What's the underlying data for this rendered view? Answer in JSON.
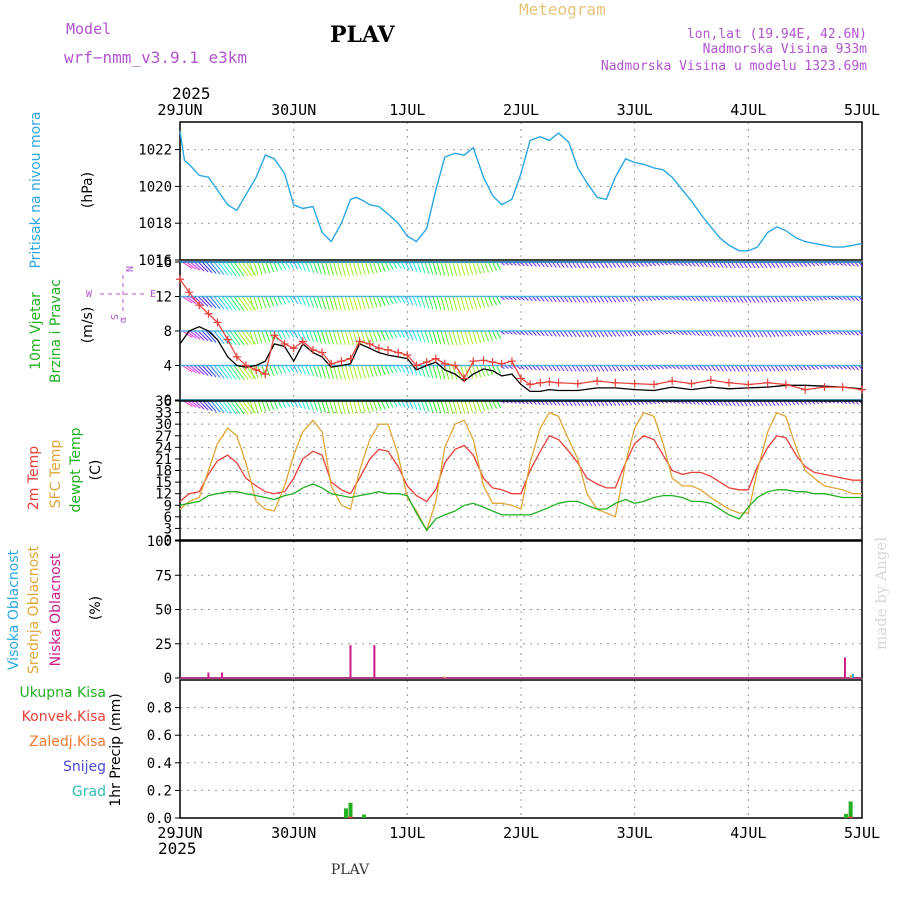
{
  "header": {
    "title": "PLAV",
    "subtitle": "Meteogram",
    "model_label": "Model",
    "model_name": "wrf−nmm_v3.9.1  e3km",
    "location": "lon,lat (19.94E, 42.6N)",
    "elevation": "Nadmorska Visina 933m",
    "model_elevation": "Nadmorska Visina u modelu 1323.69m",
    "year_top": "2025",
    "year_bottom": "2025",
    "footer_station": "PLAV",
    "credit": "made by Angel",
    "compass": [
      "N",
      "E",
      "S",
      "W"
    ],
    "compass_alpha": "α"
  },
  "colors": {
    "pressure": "#2aa7e0",
    "wind_speed": "#000000",
    "gust": "#e8403a",
    "t2m": "#e8403a",
    "sfc": "#e0a63a",
    "dew": "#22b022",
    "high_cloud": "#2aa7e0",
    "mid_cloud": "#e0a63a",
    "low_cloud": "#cc1a88",
    "total_precip": "#22b022",
    "conv_precip": "#e8403a",
    "frozen_precip": "#f07a30",
    "snow": "#4b4bd6",
    "graupel": "#2ebfb0"
  },
  "chart_data": [
    {
      "type": "line",
      "panel": "pressure",
      "xlabel_ticks": [
        "29JUN",
        "30JUN",
        "1JUL",
        "2JUL",
        "3JUL",
        "4JUL",
        "5JUL"
      ],
      "ylabel": "(hPa)",
      "side_labels": [
        "Pritisak na nivou mora"
      ],
      "ylim": [
        1016,
        1023.5
      ],
      "y_ticks": [
        1016,
        1018,
        1020,
        1022
      ],
      "series": [
        {
          "name": "Pritisak na nivou mora",
          "x": [
            0,
            0.04,
            0.08,
            0.17,
            0.25,
            0.33,
            0.42,
            0.5,
            0.67,
            0.75,
            0.83,
            0.92,
            1.0,
            1.08,
            1.17,
            1.25,
            1.33,
            1.42,
            1.5,
            1.55,
            1.62,
            1.67,
            1.75,
            1.83,
            1.92,
            2.0,
            2.08,
            2.17,
            2.25,
            2.33,
            2.42,
            2.5,
            2.58,
            2.67,
            2.75,
            2.83,
            2.92,
            3.0,
            3.08,
            3.17,
            3.25,
            3.33,
            3.42,
            3.5,
            3.58,
            3.67,
            3.75,
            3.83,
            3.92,
            4.0,
            4.08,
            4.17,
            4.25,
            4.33,
            4.42,
            4.5,
            4.58,
            4.67,
            4.75,
            4.83,
            4.92,
            5.0,
            5.08,
            5.17,
            5.25,
            5.33,
            5.42,
            5.5,
            5.58,
            5.67,
            5.75,
            5.83,
            5.92,
            6.0
          ],
          "y": [
            1023.0,
            1021.4,
            1021.2,
            1020.6,
            1020.5,
            1019.8,
            1019.0,
            1018.7,
            1020.5,
            1021.7,
            1021.5,
            1020.7,
            1019.0,
            1018.8,
            1018.9,
            1017.5,
            1017.0,
            1018.0,
            1019.3,
            1019.4,
            1019.2,
            1019.0,
            1018.9,
            1018.5,
            1018.0,
            1017.3,
            1017.0,
            1017.7,
            1019.8,
            1021.6,
            1021.8,
            1021.7,
            1022.1,
            1020.5,
            1019.5,
            1019.0,
            1019.3,
            1020.7,
            1022.5,
            1022.7,
            1022.5,
            1022.9,
            1022.4,
            1021.0,
            1020.2,
            1019.4,
            1019.3,
            1020.5,
            1021.5,
            1021.3,
            1021.2,
            1021.0,
            1020.9,
            1020.5,
            1019.8,
            1019.2,
            1018.5,
            1017.8,
            1017.2,
            1016.8,
            1016.5,
            1016.5,
            1016.7,
            1017.5,
            1017.8,
            1017.6,
            1017.2,
            1017.0,
            1016.9,
            1016.8,
            1016.7,
            1016.7,
            1016.8,
            1016.9
          ]
        }
      ]
    },
    {
      "type": "line",
      "panel": "wind",
      "ylabel": "(m/s)",
      "side_labels": [
        "10m Vjetar",
        "Brzina i Pravac"
      ],
      "ylim": [
        0,
        16
      ],
      "y_ticks": [
        0,
        4,
        8,
        12,
        16
      ],
      "barb_levels_ms": [
        0,
        4,
        8,
        12,
        16
      ],
      "series": [
        {
          "name": "Brzina",
          "x": [
            0,
            0.08,
            0.17,
            0.25,
            0.33,
            0.42,
            0.5,
            0.58,
            0.67,
            0.75,
            0.83,
            0.92,
            1.0,
            1.08,
            1.17,
            1.25,
            1.33,
            1.42,
            1.5,
            1.58,
            1.67,
            1.75,
            1.83,
            1.92,
            2.0,
            2.08,
            2.17,
            2.25,
            2.33,
            2.42,
            2.5,
            2.58,
            2.67,
            2.75,
            2.83,
            2.92,
            3.0,
            3.08,
            3.17,
            3.25,
            3.33,
            3.5,
            3.67,
            3.83,
            4.0,
            4.17,
            4.33,
            4.5,
            4.67,
            4.83,
            5.0,
            5.17,
            5.33,
            5.5,
            5.67,
            5.83,
            6.0
          ],
          "y": [
            6.5,
            8.0,
            8.5,
            8.0,
            7.0,
            5.0,
            4.0,
            3.8,
            4.0,
            4.5,
            6.5,
            6.2,
            4.5,
            6.5,
            5.5,
            5.0,
            3.8,
            4.0,
            4.2,
            6.5,
            6.0,
            5.5,
            5.2,
            5.0,
            4.8,
            3.5,
            4.0,
            4.4,
            3.5,
            3.0,
            2.2,
            3.0,
            3.6,
            3.4,
            2.8,
            3.0,
            1.8,
            1.0,
            1.0,
            1.2,
            1.1,
            1.1,
            1.4,
            1.4,
            1.2,
            1.1,
            1.5,
            1.2,
            1.5,
            1.3,
            1.4,
            1.5,
            1.7,
            1.7,
            1.6,
            1.5,
            1.3
          ]
        },
        {
          "name": "Udari",
          "x": [
            0,
            0.08,
            0.17,
            0.25,
            0.33,
            0.42,
            0.5,
            0.58,
            0.67,
            0.75,
            0.83,
            0.92,
            1.0,
            1.08,
            1.17,
            1.25,
            1.33,
            1.42,
            1.5,
            1.58,
            1.67,
            1.75,
            1.83,
            1.92,
            2.0,
            2.08,
            2.17,
            2.25,
            2.33,
            2.42,
            2.5,
            2.58,
            2.67,
            2.75,
            2.83,
            2.92,
            3.0,
            3.08,
            3.17,
            3.25,
            3.33,
            3.5,
            3.67,
            3.83,
            4.0,
            4.17,
            4.33,
            4.5,
            4.67,
            4.83,
            5.0,
            5.17,
            5.33,
            5.5,
            5.67,
            5.83,
            6.0
          ],
          "y": [
            14.0,
            12.5,
            11.0,
            10.0,
            9.0,
            7.0,
            5.0,
            4.0,
            3.5,
            3.0,
            7.5,
            6.5,
            6.0,
            6.8,
            5.8,
            5.5,
            4.2,
            4.5,
            4.8,
            6.8,
            6.5,
            6.0,
            5.8,
            5.5,
            5.2,
            4.0,
            4.4,
            4.8,
            4.2,
            4.0,
            2.5,
            4.5,
            4.6,
            4.4,
            4.2,
            4.5,
            2.5,
            1.8,
            2.0,
            2.1,
            2.0,
            1.9,
            2.2,
            2.0,
            1.9,
            1.8,
            2.2,
            1.9,
            2.3,
            2.0,
            1.8,
            2.0,
            1.8,
            1.2,
            1.5,
            1.5,
            1.2
          ]
        }
      ]
    },
    {
      "type": "line",
      "panel": "temperature",
      "ylabel": "(C)",
      "side_labels": [
        "2m Temp",
        "SFC Temp",
        "dewpt Temp"
      ],
      "ylim": [
        0,
        36
      ],
      "y_ticks": [
        0,
        3,
        6,
        9,
        12,
        15,
        18,
        21,
        24,
        27,
        30,
        33,
        36
      ],
      "series": [
        {
          "name": "2m Temp",
          "x": [
            0,
            0.08,
            0.17,
            0.25,
            0.33,
            0.42,
            0.5,
            0.58,
            0.67,
            0.75,
            0.83,
            0.92,
            1.0,
            1.08,
            1.17,
            1.25,
            1.33,
            1.42,
            1.5,
            1.58,
            1.67,
            1.75,
            1.83,
            1.92,
            2.0,
            2.08,
            2.17,
            2.25,
            2.33,
            2.42,
            2.5,
            2.58,
            2.67,
            2.75,
            2.83,
            2.92,
            3.0,
            3.08,
            3.17,
            3.25,
            3.33,
            3.42,
            3.5,
            3.58,
            3.67,
            3.75,
            3.83,
            3.92,
            4.0,
            4.08,
            4.17,
            4.25,
            4.33,
            4.42,
            4.5,
            4.58,
            4.67,
            4.75,
            4.83,
            4.92,
            5.0,
            5.08,
            5.17,
            5.25,
            5.33,
            5.42,
            5.5,
            5.58,
            5.67,
            5.75,
            5.83,
            5.92,
            6.0
          ],
          "y": [
            10,
            12,
            12.5,
            17,
            20.5,
            22,
            20,
            16,
            14,
            12.5,
            12,
            12.5,
            16,
            21,
            23,
            22,
            15,
            13,
            12,
            16,
            21,
            23.5,
            23,
            19,
            14,
            11.5,
            10,
            13,
            20,
            23.5,
            24.5,
            22,
            16,
            13.5,
            13,
            12,
            12,
            18,
            23,
            27,
            26,
            23,
            20,
            16,
            14.5,
            13.5,
            13.5,
            20,
            25,
            27,
            26,
            22,
            18,
            17,
            17.5,
            17.5,
            16.5,
            15,
            13.5,
            13,
            13,
            19,
            24,
            27,
            26.5,
            22,
            19,
            17.5,
            17,
            16.5,
            16,
            15.5,
            15.5
          ]
        },
        {
          "name": "SFC Temp",
          "x": [
            0,
            0.08,
            0.17,
            0.25,
            0.33,
            0.42,
            0.5,
            0.58,
            0.67,
            0.75,
            0.83,
            0.92,
            1.0,
            1.08,
            1.17,
            1.25,
            1.33,
            1.42,
            1.5,
            1.58,
            1.67,
            1.75,
            1.83,
            1.92,
            2.0,
            2.08,
            2.17,
            2.25,
            2.33,
            2.42,
            2.5,
            2.58,
            2.67,
            2.75,
            2.83,
            2.92,
            3.0,
            3.08,
            3.17,
            3.25,
            3.33,
            3.42,
            3.5,
            3.58,
            3.67,
            3.75,
            3.83,
            3.92,
            4.0,
            4.08,
            4.17,
            4.25,
            4.33,
            4.42,
            4.5,
            4.58,
            4.67,
            4.75,
            4.83,
            4.92,
            5.0,
            5.08,
            5.17,
            5.25,
            5.33,
            5.42,
            5.5,
            5.58,
            5.67,
            5.75,
            5.83,
            5.92,
            6.0
          ],
          "y": [
            8,
            10,
            11,
            18,
            25,
            29,
            27,
            20,
            10,
            8,
            7.5,
            14,
            22,
            28,
            31,
            28,
            14,
            9,
            8,
            18,
            26,
            30,
            30,
            22,
            11,
            7.5,
            2.5,
            10,
            24,
            30,
            31,
            26,
            14,
            9.5,
            9.5,
            9,
            8,
            20,
            29,
            33,
            32,
            26,
            21,
            12,
            8,
            7,
            6,
            20,
            29,
            33,
            32,
            25,
            16,
            14,
            14,
            13,
            11,
            9.5,
            8,
            7,
            7,
            18,
            28,
            33,
            32,
            24,
            18,
            16,
            14,
            13.5,
            13,
            12,
            12
          ]
        },
        {
          "name": "dewpt Temp",
          "x": [
            0,
            0.08,
            0.17,
            0.25,
            0.33,
            0.42,
            0.5,
            0.58,
            0.67,
            0.75,
            0.83,
            0.92,
            1.0,
            1.08,
            1.17,
            1.25,
            1.33,
            1.42,
            1.5,
            1.58,
            1.67,
            1.75,
            1.83,
            1.92,
            2.0,
            2.08,
            2.17,
            2.25,
            2.33,
            2.42,
            2.5,
            2.58,
            2.67,
            2.75,
            2.83,
            2.92,
            3.0,
            3.08,
            3.17,
            3.25,
            3.33,
            3.42,
            3.5,
            3.58,
            3.67,
            3.75,
            3.83,
            3.92,
            4.0,
            4.08,
            4.17,
            4.25,
            4.33,
            4.42,
            4.5,
            4.58,
            4.67,
            4.75,
            4.83,
            4.92,
            5.0,
            5.08,
            5.17,
            5.25,
            5.33,
            5.42,
            5.5,
            5.58,
            5.67,
            5.75,
            5.83,
            5.92,
            6.0
          ],
          "y": [
            9,
            9.5,
            10,
            11.5,
            12,
            12.5,
            12.5,
            12,
            11.5,
            11,
            10.5,
            11.5,
            12,
            13.5,
            14.5,
            13.5,
            12,
            11.5,
            11,
            11.5,
            12,
            12.5,
            12,
            12,
            11.5,
            7,
            2.5,
            5.5,
            6.5,
            7.5,
            9,
            9.5,
            8.5,
            7.5,
            6.5,
            6.5,
            6.5,
            6.5,
            7.5,
            8.5,
            9.5,
            10,
            10,
            9,
            8,
            8,
            9.5,
            10.5,
            9.5,
            10,
            11,
            11.5,
            11.5,
            11,
            10,
            10,
            9.5,
            8,
            6.5,
            5.5,
            8.5,
            11,
            12.5,
            13,
            13,
            12.5,
            12.5,
            12,
            12,
            11.5,
            11,
            11,
            11
          ]
        }
      ]
    },
    {
      "type": "bar",
      "panel": "cloud",
      "ylabel": "(%)",
      "side_labels": [
        "Visoka Oblacnost",
        "Srednja Oblacnost",
        "Niska Oblacnost"
      ],
      "ylim": [
        0,
        100
      ],
      "y_ticks": [
        0,
        25,
        50,
        75,
        100
      ],
      "series": [
        {
          "name": "Niska Oblacnost",
          "x": [
            0.25,
            0.37,
            1.5,
            1.71,
            5.85
          ],
          "values": [
            4,
            4,
            24,
            24,
            15
          ]
        },
        {
          "name": "Srednja Oblacnost",
          "x": [
            2.33,
            5.9
          ],
          "values": [
            1,
            2
          ]
        },
        {
          "name": "Visoka Oblacnost",
          "x": [
            5.92
          ],
          "values": [
            3
          ]
        }
      ]
    },
    {
      "type": "bar",
      "panel": "precip",
      "ylabel": "1hr Precip (mm)",
      "side_labels": [
        "Ukupna Kisa",
        "Konvek.Kisa",
        "Zaledj.Kisa",
        "Snijeg",
        "Grad"
      ],
      "ylim": [
        0,
        1.0
      ],
      "y_ticks": [
        0,
        0.2,
        0.4,
        0.6,
        0.8
      ],
      "series": [
        {
          "name": "Ukupna Kisa",
          "x": [
            1.46,
            1.5,
            1.62,
            5.86,
            5.9
          ],
          "values": [
            0.07,
            0.11,
            0.025,
            0.03,
            0.12
          ]
        },
        {
          "name": "Konvek.Kisa",
          "x": [
            1.5,
            5.9
          ],
          "values": [
            0.01,
            0.01
          ]
        }
      ]
    }
  ]
}
